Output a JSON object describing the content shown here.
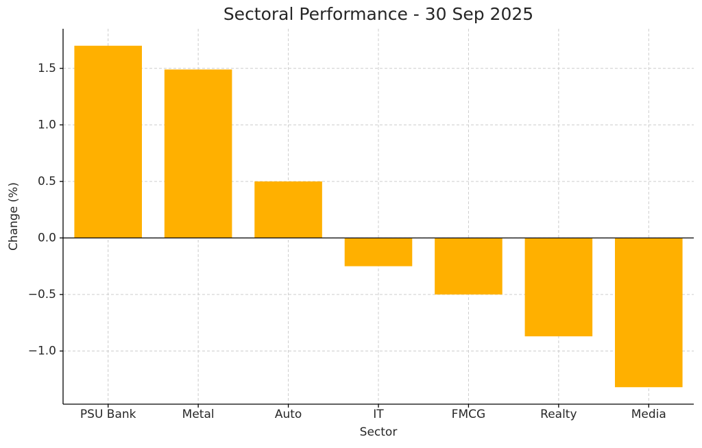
{
  "chart_data": {
    "type": "bar",
    "title": "Sectoral Performance - 30 Sep 2025",
    "x_label": "Sector",
    "y_label": "Change (%)",
    "categories": [
      "PSU Bank",
      "Metal",
      "Auto",
      "IT",
      "FMCG",
      "Realty",
      "Media"
    ],
    "values": [
      1.7,
      1.49,
      0.5,
      -0.25,
      -0.5,
      -0.87,
      -1.32
    ],
    "color": "#ffb000",
    "ylim": [
      -1.47,
      1.85
    ],
    "yticks": [
      {
        "value": -1,
        "label": "−1.0"
      },
      {
        "value": -0.5,
        "label": "−0.5"
      },
      {
        "value": 0,
        "label": "0.0"
      },
      0.5,
      {
        "value": 1,
        "label": "1.0"
      },
      1.5
    ],
    "grid": true
  }
}
